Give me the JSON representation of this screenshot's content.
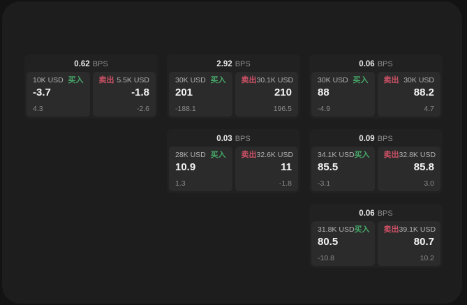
{
  "page": {
    "background": "#131313",
    "panel_background": "#1d1d1d",
    "card_background": "#212121",
    "subpanel_background": "#2b2b2b"
  },
  "colors": {
    "buy_green": "#46a568",
    "sell_red": "#cd5166",
    "price_text": "#f4f4f4",
    "muted_text": "#8b8b8b"
  },
  "labels": {
    "bps": "BPS",
    "buy": "买入",
    "sell": "卖出"
  },
  "cards": [
    {
      "bps": "0.62",
      "row": 1,
      "col": 1,
      "buy": {
        "amount": "10K USD",
        "price": "-3.7",
        "delta": "4.3"
      },
      "sell": {
        "amount": "5.5K USD",
        "price": "-1.8",
        "delta": "-2.6"
      }
    },
    {
      "bps": "2.92",
      "row": 1,
      "col": 2,
      "buy": {
        "amount": "30K USD",
        "price": "201",
        "delta": "-188.1"
      },
      "sell": {
        "amount": "30.1K USD",
        "price": "210",
        "delta": "196.5"
      }
    },
    {
      "bps": "0.06",
      "row": 1,
      "col": 3,
      "buy": {
        "amount": "30K USD",
        "price": "88",
        "delta": "-4.9"
      },
      "sell": {
        "amount": "30K USD",
        "price": "88.2",
        "delta": "4.7"
      }
    },
    {
      "bps": "0.03",
      "row": 2,
      "col": 2,
      "buy": {
        "amount": "28K USD",
        "price": "10.9",
        "delta": "1.3"
      },
      "sell": {
        "amount": "32.6K USD",
        "price": "11",
        "delta": "-1.8"
      }
    },
    {
      "bps": "0.09",
      "row": 2,
      "col": 3,
      "buy": {
        "amount": "34.1K USD",
        "price": "85.5",
        "delta": "-3.1"
      },
      "sell": {
        "amount": "32.8K USD",
        "price": "85.8",
        "delta": "3.0"
      }
    },
    {
      "bps": "0.06",
      "row": 3,
      "col": 3,
      "buy": {
        "amount": "31.8K USD",
        "price": "80.5",
        "delta": "-10.8"
      },
      "sell": {
        "amount": "39.1K USD",
        "price": "80.7",
        "delta": "10.2"
      }
    }
  ]
}
